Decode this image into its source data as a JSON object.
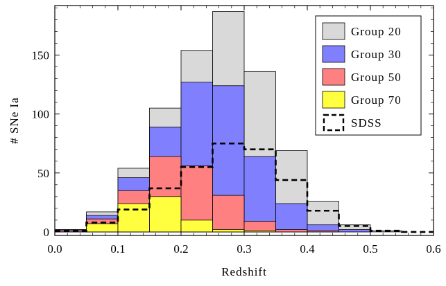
{
  "chart_data": {
    "type": "bar",
    "title": "",
    "xlabel": "Redshift",
    "ylabel": "# SNe Ia",
    "xlim": [
      0,
      0.6
    ],
    "ylim": [
      -3,
      192
    ],
    "x_ticks": [
      {
        "value": 0.0,
        "label": "0.0"
      },
      {
        "value": 0.1,
        "label": "0.1"
      },
      {
        "value": 0.2,
        "label": "0.2"
      },
      {
        "value": 0.3,
        "label": "0.3"
      },
      {
        "value": 0.4,
        "label": "0.4"
      },
      {
        "value": 0.5,
        "label": "0.5"
      },
      {
        "value": 0.6,
        "label": "0.6"
      }
    ],
    "y_ticks": [
      {
        "value": 0,
        "label": "0"
      },
      {
        "value": 50,
        "label": "50"
      },
      {
        "value": 100,
        "label": "100"
      },
      {
        "value": 150,
        "label": "150"
      }
    ],
    "bin_edges": [
      0.0,
      0.05,
      0.1,
      0.15,
      0.2,
      0.25,
      0.3,
      0.35,
      0.4,
      0.45,
      0.5,
      0.55,
      0.6
    ],
    "series": [
      {
        "name": "Group 20",
        "style": "filled",
        "color": "#d9d9d9",
        "values": [
          2,
          17,
          54,
          105,
          154,
          187,
          136,
          69,
          26,
          6,
          1,
          0
        ]
      },
      {
        "name": "Group 30",
        "style": "filled",
        "color": "#8080ff",
        "values": [
          2,
          14,
          46,
          89,
          127,
          124,
          64,
          24,
          6,
          2,
          0,
          0
        ]
      },
      {
        "name": "Group 50",
        "style": "filled",
        "color": "#ff8080",
        "values": [
          1,
          11,
          35,
          64,
          56,
          31,
          9,
          2,
          1,
          0,
          0,
          0
        ]
      },
      {
        "name": "Group 70",
        "style": "filled",
        "color": "#ffff40",
        "values": [
          0,
          7,
          24,
          30,
          10,
          2,
          1,
          0,
          0,
          0,
          0,
          0
        ]
      },
      {
        "name": "SDSS",
        "style": "dashed",
        "color": "#000000",
        "values": [
          1,
          8,
          19,
          37,
          55,
          75,
          70,
          44,
          18,
          5,
          1,
          0
        ]
      }
    ],
    "grid": false,
    "legend_position": "top-right"
  }
}
